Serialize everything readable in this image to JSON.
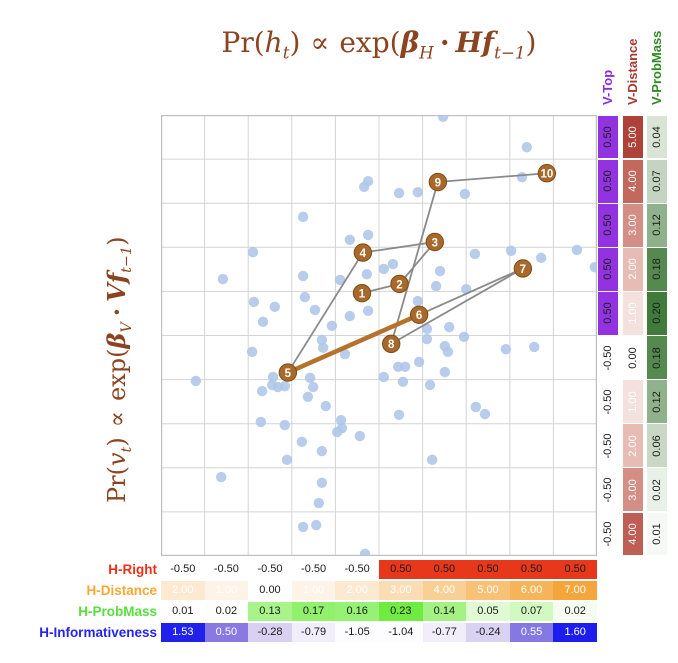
{
  "formulas": {
    "top": {
      "pr": "Pr(",
      "var": "h",
      "sub": "t",
      "close": ")",
      "propto": "∝",
      "exp": "exp(",
      "beta": "β",
      "betasub": "H",
      "dot": "·",
      "vec": "Hf",
      "vecsub": "t−1",
      "close2": ")"
    },
    "left": {
      "pr": "Pr(",
      "var": "v",
      "sub": "t",
      "close": ")",
      "propto": "∝",
      "exp": "exp(",
      "beta": "β",
      "betasub": "V",
      "dot": "·",
      "vec": "Vf",
      "vecsub": "t−1",
      "close2": ")"
    }
  },
  "colors": {
    "title_brown": "#8B4420",
    "marker_fill": "#A9692B",
    "marker_stroke": "#7E4C16",
    "trajectory_gray": "#8A8A8A",
    "highlight_brown": "#B4722C",
    "scatter_blue": "#AEC6E8",
    "grid_line": "#D4D4D4",
    "grid_border": "#BFBFBF"
  },
  "chart_data": {
    "type": "scatter",
    "title": "Pr(h_t) ∝ exp(β_H · Hf_{t−1})",
    "ylabel": "Pr(v_t) ∝ exp(β_V · Vf_{t−1})",
    "x_range": [
      0,
      10
    ],
    "y_range": [
      0,
      10
    ],
    "grid": true,
    "trajectory": {
      "points": [
        {
          "label": "1",
          "x": 4.61,
          "y": 5.96
        },
        {
          "label": "2",
          "x": 5.47,
          "y": 6.17
        },
        {
          "label": "3",
          "x": 6.28,
          "y": 7.12
        },
        {
          "label": "4",
          "x": 4.63,
          "y": 6.88
        },
        {
          "label": "5",
          "x": 2.91,
          "y": 4.16
        },
        {
          "label": "6",
          "x": 5.92,
          "y": 5.47
        },
        {
          "label": "7",
          "x": 8.3,
          "y": 6.52
        },
        {
          "label": "8",
          "x": 5.28,
          "y": 4.81
        },
        {
          "label": "9",
          "x": 6.35,
          "y": 8.48
        },
        {
          "label": "10",
          "x": 8.85,
          "y": 8.68
        }
      ],
      "edges": [
        [
          "1",
          "2"
        ],
        [
          "2",
          "3"
        ],
        [
          "3",
          "4"
        ],
        [
          "4",
          "5"
        ],
        [
          "6",
          "7"
        ],
        [
          "7",
          "8"
        ],
        [
          "8",
          "9"
        ],
        [
          "9",
          "10"
        ]
      ],
      "highlighted_edge": [
        "5",
        "6"
      ]
    },
    "background_points": [
      [
        4.75,
        8.5
      ],
      [
        4.66,
        8.37
      ],
      [
        3.26,
        7.69
      ],
      [
        4.33,
        7.17
      ],
      [
        4.75,
        7.28
      ],
      [
        2.11,
        6.89
      ],
      [
        1.42,
        6.28
      ],
      [
        3.26,
        6.35
      ],
      [
        4.11,
        6.26
      ],
      [
        3.3,
        5.87
      ],
      [
        4.72,
        6.39
      ],
      [
        2.13,
        5.76
      ],
      [
        2.61,
        5.65
      ],
      [
        3.53,
        5.58
      ],
      [
        2.34,
        5.31
      ],
      [
        3.92,
        5.22
      ],
      [
        4.33,
        5.44
      ],
      [
        4.75,
        5.56
      ],
      [
        6.47,
        9.96
      ],
      [
        8.39,
        9.27
      ],
      [
        8.28,
        8.59
      ],
      [
        5.46,
        8.23
      ],
      [
        5.89,
        8.25
      ],
      [
        6.97,
        8.21
      ],
      [
        7.2,
        6.85
      ],
      [
        8.03,
        6.92
      ],
      [
        9.54,
        6.94
      ],
      [
        9.95,
        6.55
      ],
      [
        8.72,
        6.76
      ],
      [
        5.11,
        6.51
      ],
      [
        5.32,
        6.62
      ],
      [
        6.4,
        6.46
      ],
      [
        6.31,
        6.12
      ],
      [
        7.0,
        6.05
      ],
      [
        5.89,
        5.78
      ],
      [
        6.1,
        5.15
      ],
      [
        6.61,
        5.19
      ],
      [
        2.09,
        4.63
      ],
      [
        3.69,
        4.9
      ],
      [
        3.72,
        4.72
      ],
      [
        4.22,
        4.58
      ],
      [
        0.8,
        3.97
      ],
      [
        2.57,
        4.06
      ],
      [
        2.55,
        3.88
      ],
      [
        2.68,
        3.83
      ],
      [
        2.84,
        3.85
      ],
      [
        2.32,
        3.74
      ],
      [
        3.42,
        4.04
      ],
      [
        3.49,
        3.83
      ],
      [
        3.37,
        3.61
      ],
      [
        3.78,
        3.4
      ],
      [
        2.29,
        3.04
      ],
      [
        2.84,
        2.97
      ],
      [
        4.13,
        3.08
      ],
      [
        4.15,
        2.9
      ],
      [
        4.04,
        2.81
      ],
      [
        4.56,
        2.72
      ],
      [
        3.23,
        2.59
      ],
      [
        3.69,
        2.38
      ],
      [
        2.89,
        2.18
      ],
      [
        1.38,
        1.79
      ],
      [
        3.69,
        1.66
      ],
      [
        3.62,
        1.2
      ],
      [
        3.26,
        0.66
      ],
      [
        3.56,
        0.7
      ],
      [
        4.68,
        0.05
      ],
      [
        6.1,
        4.92
      ],
      [
        6.51,
        4.76
      ],
      [
        6.58,
        4.63
      ],
      [
        6.95,
        4.97
      ],
      [
        7.91,
        4.69
      ],
      [
        8.56,
        4.74
      ],
      [
        5.92,
        4.4
      ],
      [
        5.44,
        4.29
      ],
      [
        5.6,
        4.29
      ],
      [
        5.11,
        4.06
      ],
      [
        5.55,
        3.95
      ],
      [
        6.51,
        4.17
      ],
      [
        6.17,
        3.88
      ],
      [
        7.22,
        3.38
      ],
      [
        7.43,
        3.22
      ],
      [
        5.46,
        3.2
      ],
      [
        6.22,
        2.18
      ]
    ]
  },
  "v_features": {
    "columns": [
      {
        "label": "V-Top",
        "label_color": "#8B2BE2",
        "values": [
          "0.50",
          "0.50",
          "0.50",
          "0.50",
          "0.50",
          "-0.50",
          "-0.50",
          "-0.50",
          "-0.50",
          "-0.50"
        ],
        "cell_bg": [
          "#9333E0",
          "#9333E0",
          "#9333E0",
          "#9333E0",
          "#9333E0",
          "#FFFFFF",
          "#FFFFFF",
          "#FFFFFF",
          "#FFFFFF",
          "#FFFFFF"
        ],
        "cell_text": [
          "#1A1A1A",
          "#1A1A1A",
          "#1A1A1A",
          "#1A1A1A",
          "#1A1A1A",
          "#1A1A1A",
          "#1A1A1A",
          "#1A1A1A",
          "#1A1A1A",
          "#1A1A1A"
        ]
      },
      {
        "label": "V-Distance",
        "label_color": "#A63A2E",
        "values": [
          "5.00",
          "4.00",
          "3.00",
          "2.00",
          "1.00",
          "0.00",
          "1.00",
          "2.00",
          "3.00",
          "4.00"
        ],
        "cell_bg": [
          "#AE4238",
          "#C2685C",
          "#D38F85",
          "#E7BCB4",
          "#F4E0DC",
          "#FFFFFF",
          "#F4E0DC",
          "#E7BCB4",
          "#D38F85",
          "#BE5E54"
        ],
        "cell_text": [
          "#FFFFFF",
          "#FFFFFF",
          "#FFFFFF",
          "#FFFFFF",
          "#FFFFFF",
          "#1A1A1A",
          "#FFFFFF",
          "#FFFFFF",
          "#FFFFFF",
          "#FFFFFF"
        ]
      },
      {
        "label": "V-ProbMass",
        "label_color": "#2E8B22",
        "values": [
          "0.04",
          "0.07",
          "0.12",
          "0.18",
          "0.20",
          "0.18",
          "0.12",
          "0.06",
          "0.02",
          "0.01"
        ],
        "cell_bg": [
          "#D9E4D6",
          "#C3D5C0",
          "#8FB28C",
          "#55894F",
          "#417B3C",
          "#55894F",
          "#8FB28C",
          "#C8D8C5",
          "#E9F0E7",
          "#F6F8F5"
        ],
        "cell_text": [
          "#1A1A1A",
          "#1A1A1A",
          "#1A1A1A",
          "#1A1A1A",
          "#1A1A1A",
          "#1A1A1A",
          "#1A1A1A",
          "#1A1A1A",
          "#1A1A1A",
          "#1A1A1A"
        ]
      }
    ]
  },
  "h_features": {
    "rows": [
      {
        "label": "H-Right",
        "label_color": "#EE3018",
        "values": [
          "-0.50",
          "-0.50",
          "-0.50",
          "-0.50",
          "-0.50",
          "0.50",
          "0.50",
          "0.50",
          "0.50",
          "0.50"
        ],
        "cell_bg": [
          "#FFFFFF",
          "#FFFFFF",
          "#FFFFFF",
          "#FFFFFF",
          "#FFFFFF",
          "#E8381C",
          "#E8381C",
          "#E8381C",
          "#E8381C",
          "#E8381C"
        ],
        "cell_text": [
          "#1A1A1A",
          "#1A1A1A",
          "#1A1A1A",
          "#1A1A1A",
          "#1A1A1A",
          "#1A1A1A",
          "#1A1A1A",
          "#1A1A1A",
          "#1A1A1A",
          "#1A1A1A"
        ]
      },
      {
        "label": "H-Distance",
        "label_color": "#F5A832",
        "values": [
          "2.00",
          "1.00",
          "0.00",
          "1.00",
          "2.00",
          "3.00",
          "4.00",
          "5.00",
          "6.00",
          "7.00"
        ],
        "cell_bg": [
          "#FBE9D0",
          "#FDF4E7",
          "#FFFFFF",
          "#FDF4E7",
          "#FBE9D0",
          "#FADDB4",
          "#F8CF94",
          "#F7C276",
          "#F6B458",
          "#F4A63C"
        ],
        "cell_text": [
          "#FFFFFF",
          "#FFFFFF",
          "#1A1A1A",
          "#FFFFFF",
          "#FFFFFF",
          "#FFFFFF",
          "#FFFFFF",
          "#FFFFFF",
          "#FFFFFF",
          "#FFFFFF"
        ]
      },
      {
        "label": "H-ProbMass",
        "label_color": "#55E03A",
        "values": [
          "0.01",
          "0.02",
          "0.13",
          "0.17",
          "0.16",
          "0.23",
          "0.14",
          "0.05",
          "0.07",
          "0.02"
        ],
        "cell_bg": [
          "#FFFFFF",
          "#FBFEFA",
          "#A9F38B",
          "#91F06C",
          "#97F174",
          "#70EB41",
          "#A4F284",
          "#E0FBD4",
          "#D2F9C1",
          "#F4FDEF"
        ],
        "cell_text": [
          "#1A1A1A",
          "#1A1A1A",
          "#1A1A1A",
          "#1A1A1A",
          "#1A1A1A",
          "#1A1A1A",
          "#1A1A1A",
          "#1A1A1A",
          "#1A1A1A",
          "#1A1A1A"
        ]
      },
      {
        "label": "H-Informativeness",
        "label_color": "#2424EE",
        "values": [
          "1.53",
          "0.50",
          "-0.28",
          "-0.79",
          "-1.05",
          "-1.04",
          "-0.77",
          "-0.24",
          "0.55",
          "1.60"
        ],
        "cell_bg": [
          "#2121EC",
          "#8A79E3",
          "#D9D0F2",
          "#F1EDFA",
          "#FDFCFF",
          "#FDFCFF",
          "#F1EDFA",
          "#DAD2F3",
          "#8678E2",
          "#1D1DEE"
        ],
        "cell_text": [
          "#FFFFFF",
          "#FFFFFF",
          "#1A1A1A",
          "#1A1A1A",
          "#1A1A1A",
          "#1A1A1A",
          "#1A1A1A",
          "#1A1A1A",
          "#FFFFFF",
          "#FFFFFF"
        ]
      }
    ]
  }
}
